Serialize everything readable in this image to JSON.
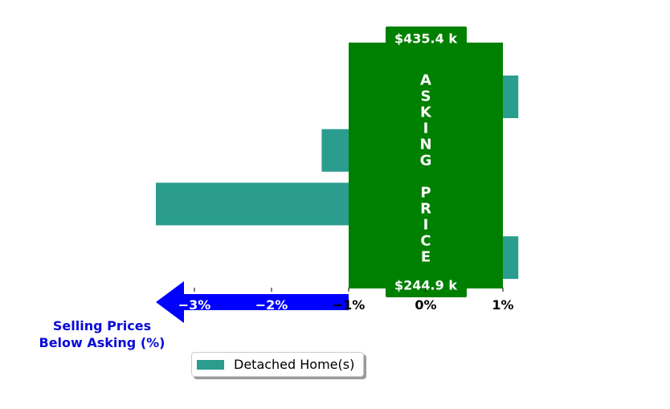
{
  "chart_data": {
    "type": "bar",
    "orientation": "horizontal",
    "x_unit": "%",
    "xlim": [
      -4.0,
      1.2
    ],
    "xticks": [
      {
        "value": -3,
        "label": "−3%"
      },
      {
        "value": -2,
        "label": "−2%"
      },
      {
        "value": -1,
        "label": "−1%"
      },
      {
        "value": 0,
        "label": "0%"
      },
      {
        "value": 1,
        "label": "1%"
      }
    ],
    "series": [
      {
        "name": "Detached Home(s)",
        "color": "#2a9d8f",
        "values": [
          1.2,
          -1.35,
          -3.5,
          1.2
        ]
      }
    ],
    "asking_price_band": {
      "x_range": [
        -1,
        1
      ],
      "color": "#008000",
      "letters": [
        "A",
        "S",
        "K",
        "I",
        "N",
        "G",
        "",
        "P",
        "R",
        "I",
        "C",
        "E"
      ],
      "top_price": "$435.4 k",
      "bottom_price": "$244.9 k"
    },
    "arrow": {
      "color": "#0000ff",
      "from": -1,
      "to": -3.5
    },
    "xlabel_lines": [
      "Selling Prices",
      "Below Asking (%)"
    ],
    "legend": {
      "placement": "lower-center",
      "label": "Detached Home(s)"
    }
  }
}
